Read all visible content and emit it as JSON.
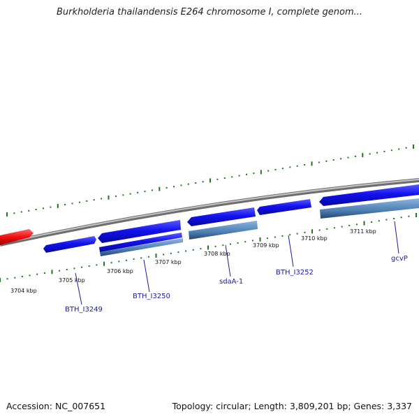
{
  "title": "Burkholderia thailandensis E264 chromosome I, complete genom...",
  "footer": {
    "accession": "Accession: NC_007651",
    "topology": "Topology: circular; Length: 3,809,201 bp; Genes: 3,337"
  },
  "colors": {
    "backbone": "#888888",
    "forward_gene": "#1010e8",
    "reverse_gene": "#4a7ab0",
    "highlight_gene": "#ee1010",
    "tick": "#1a7a1a",
    "label": "#1a1aa0"
  },
  "kbp_labels": [
    "3704 kbp",
    "3705 kbp",
    "3706 kbp",
    "3707 kbp",
    "3708 kbp",
    "3709 kbp",
    "3710 kbp",
    "3711 kbp"
  ],
  "gene_labels": [
    "BTH_I3249",
    "BTH_I3250",
    "sdaA-1",
    "BTH_I3252",
    "gcvP"
  ]
}
